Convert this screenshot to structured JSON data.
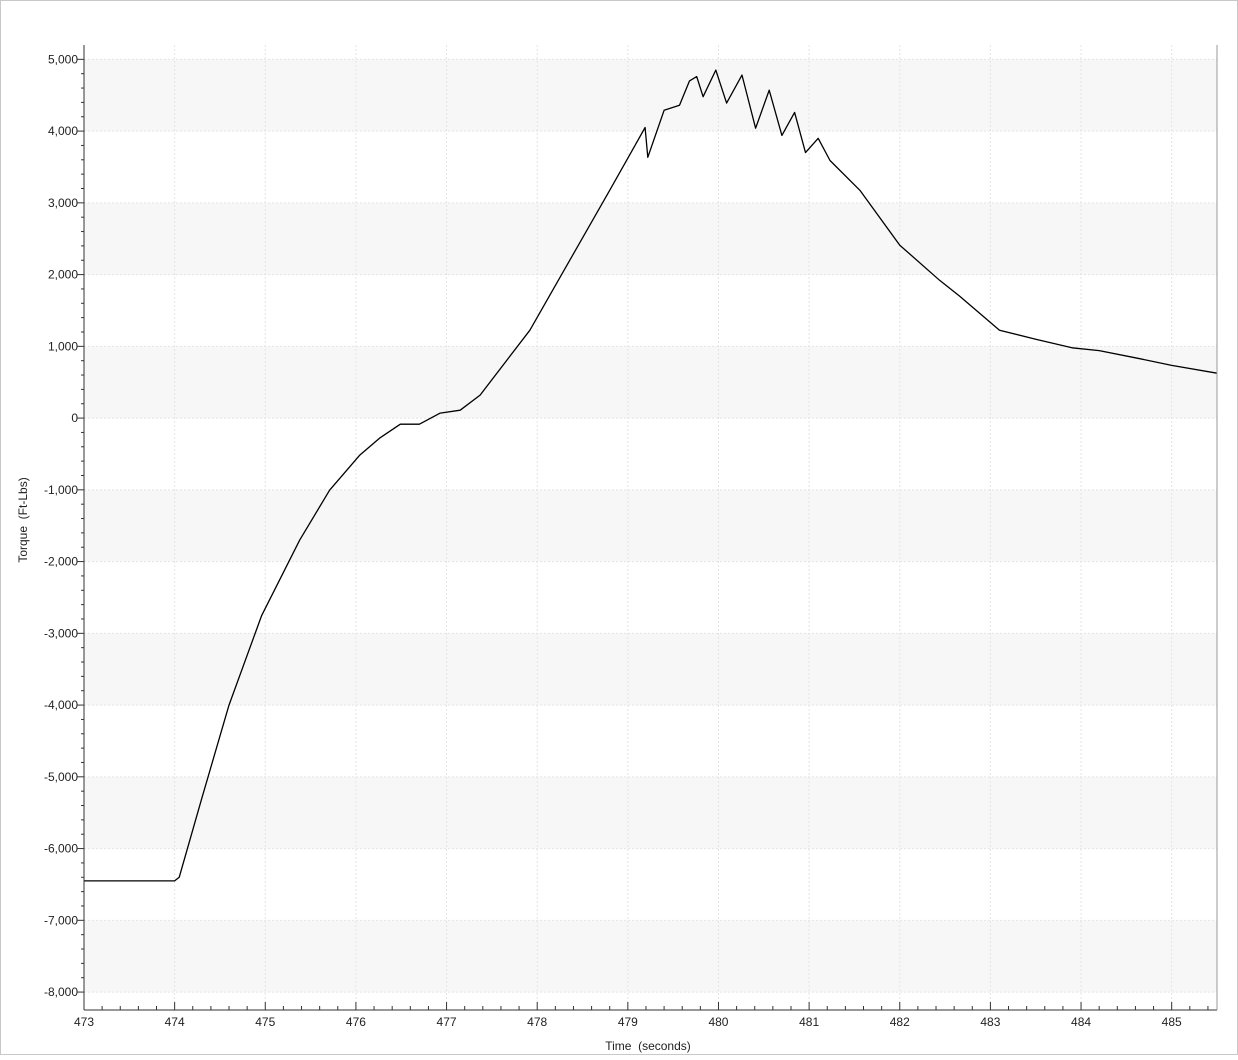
{
  "chart_data": {
    "type": "line",
    "x_label": "Time  (seconds)",
    "y_label": "Torque  (Ft-Lbs)",
    "xlim": [
      473,
      485.5
    ],
    "ylim": [
      -8250,
      5200
    ],
    "xticks": [
      473,
      474,
      475,
      476,
      477,
      478,
      479,
      480,
      481,
      482,
      483,
      484,
      485
    ],
    "yticks": [
      {
        "value": -8000,
        "label": "-8,000"
      },
      {
        "value": -7000,
        "label": "-7,000"
      },
      {
        "value": -6000,
        "label": "-6,000"
      },
      {
        "value": -5000,
        "label": "-5,000"
      },
      {
        "value": -4000,
        "label": "-4,000"
      },
      {
        "value": -3000,
        "label": "-3,000"
      },
      {
        "value": -2000,
        "label": "-2,000"
      },
      {
        "value": -1000,
        "label": "-1,000"
      },
      0,
      {
        "value": 1000,
        "label": "1,000"
      },
      {
        "value": 2000,
        "label": "2,000"
      },
      {
        "value": 3000,
        "label": "3,000"
      },
      {
        "value": 4000,
        "label": "4,000"
      },
      {
        "value": 5000,
        "label": "5,000"
      }
    ],
    "grid": true,
    "series": [
      {
        "color": "#000000",
        "x": [
          473,
          473.5,
          474,
          474.05,
          474.3,
          474.6,
          474.96,
          475.38,
          475.71,
          476.04,
          476.26,
          476.49,
          476.7,
          476.93,
          477.15,
          477.37,
          477.92,
          478.36,
          478.8,
          479.19,
          479.22,
          479.4,
          479.57,
          479.68,
          479.76,
          479.83,
          479.97,
          480.09,
          480.26,
          480.41,
          480.56,
          480.7,
          480.84,
          480.96,
          481.1,
          481.23,
          481.56,
          482.0,
          482.44,
          482.66,
          483.1,
          483.5,
          483.9,
          484.2,
          484.6,
          485,
          485.5
        ],
        "values": [
          -6450,
          -6450,
          -6450,
          -6400,
          -5300,
          -4000,
          -2750,
          -1700,
          -1005,
          -520,
          -280,
          -85,
          -85,
          70,
          110,
          320,
          1225,
          2200,
          3175,
          4050,
          3635,
          4290,
          4360,
          4700,
          4760,
          4480,
          4850,
          4390,
          4780,
          4040,
          4570,
          3940,
          4260,
          3700,
          3900,
          3590,
          3175,
          2410,
          1920,
          1700,
          1225,
          1100,
          980,
          940,
          840,
          735,
          625
        ]
      }
    ]
  }
}
